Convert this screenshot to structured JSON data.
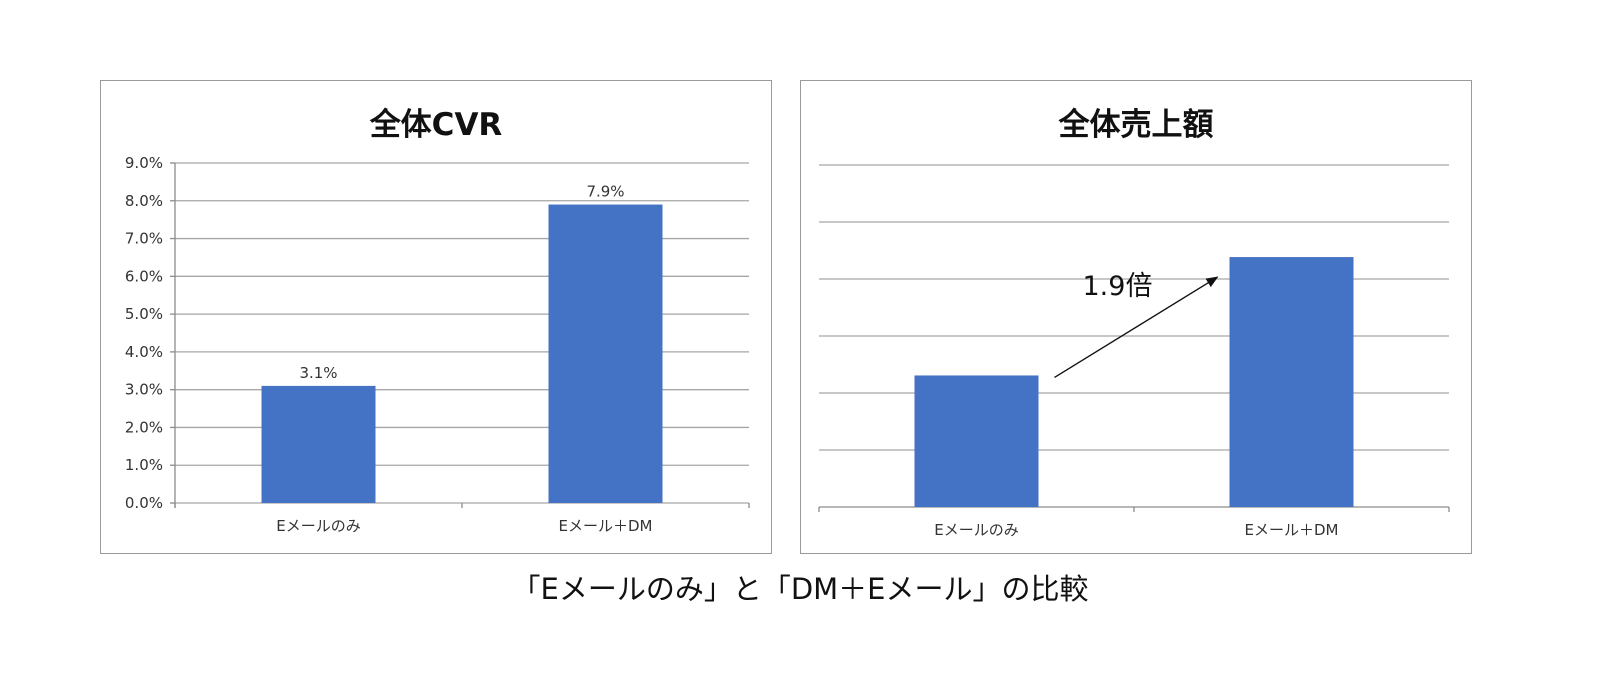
{
  "caption": "「Eメールのみ」と「DM＋Eメール」の比較",
  "colors": {
    "bar": "#4472C4",
    "grid": "#a6a6a6",
    "axis": "#8c8c8c"
  },
  "chart_data": [
    {
      "type": "bar",
      "title": "全体CVR",
      "categories": [
        "Eメールのみ",
        "Eメール＋DM"
      ],
      "values": [
        3.1,
        7.9
      ],
      "data_labels": [
        "3.1%",
        "7.9%"
      ],
      "yticks": [
        "0.0%",
        "1.0%",
        "2.0%",
        "3.0%",
        "4.0%",
        "5.0%",
        "6.0%",
        "7.0%",
        "8.0%",
        "9.0%"
      ],
      "ylim": [
        0,
        9
      ],
      "grid": true,
      "legend": "none"
    },
    {
      "type": "bar",
      "title": "全体売上額",
      "categories": [
        "Eメールのみ",
        "Eメール＋DM"
      ],
      "values": [
        1,
        1.9
      ],
      "ylim": [
        0,
        2.6
      ],
      "gridlines": 6,
      "grid": true,
      "legend": "none",
      "annotation": "1.9倍"
    }
  ]
}
